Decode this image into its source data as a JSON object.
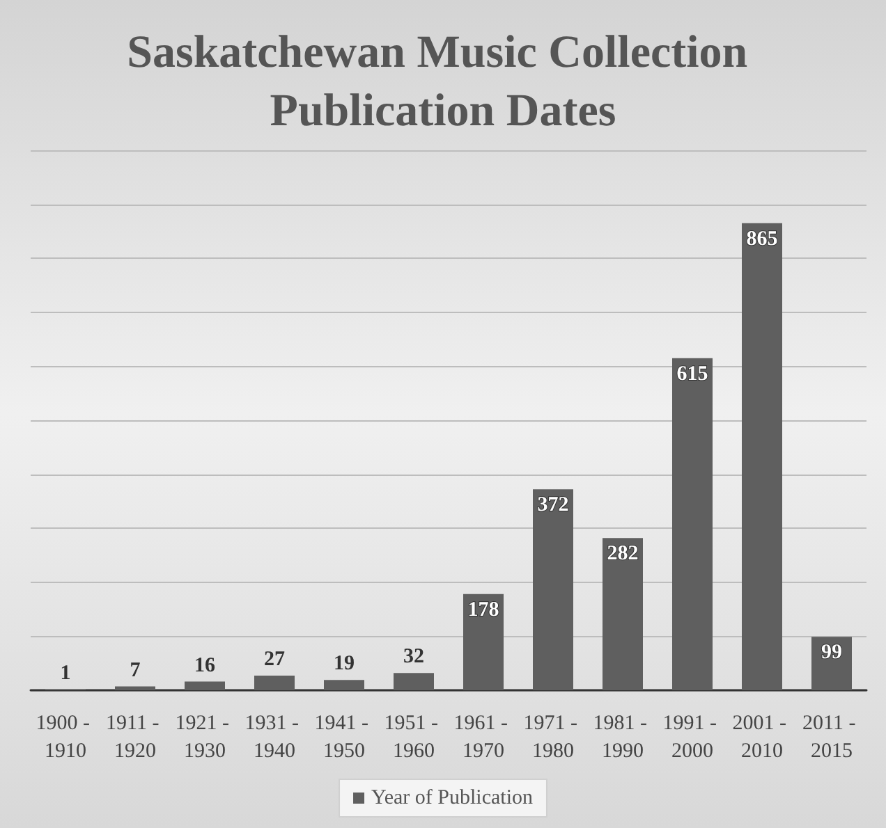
{
  "chart_data": {
    "type": "bar",
    "title": "Saskatchewan Music Collection Publication Dates",
    "categories": [
      "1900 - 1910",
      "1911 - 1920",
      "1921 - 1930",
      "1931 - 1940",
      "1941 - 1950",
      "1951 - 1960",
      "1961 - 1970",
      "1971 - 1980",
      "1981 - 1990",
      "1991 - 2000",
      "2001 - 2010",
      "2011 - 2015"
    ],
    "series": [
      {
        "name": "Year of Publication",
        "color": "#5f5f5f",
        "values": [
          1,
          7,
          16,
          27,
          19,
          32,
          178,
          372,
          282,
          615,
          865,
          99
        ]
      }
    ],
    "ylim": [
      0,
      1000
    ],
    "yticks": [
      {
        "value": 0,
        "label": null
      },
      {
        "value": 100,
        "label": null
      },
      {
        "value": 200,
        "label": null
      },
      {
        "value": 300,
        "label": null
      },
      {
        "value": 400,
        "label": null
      },
      {
        "value": 500,
        "label": null
      },
      {
        "value": 600,
        "label": null
      },
      {
        "value": 700,
        "label": null
      },
      {
        "value": 800,
        "label": null
      },
      {
        "value": 900,
        "label": null
      },
      {
        "value": 1000,
        "label": null
      }
    ],
    "tick_labels": "x",
    "grid": "y",
    "legend": "bottom",
    "data_labels": true
  }
}
